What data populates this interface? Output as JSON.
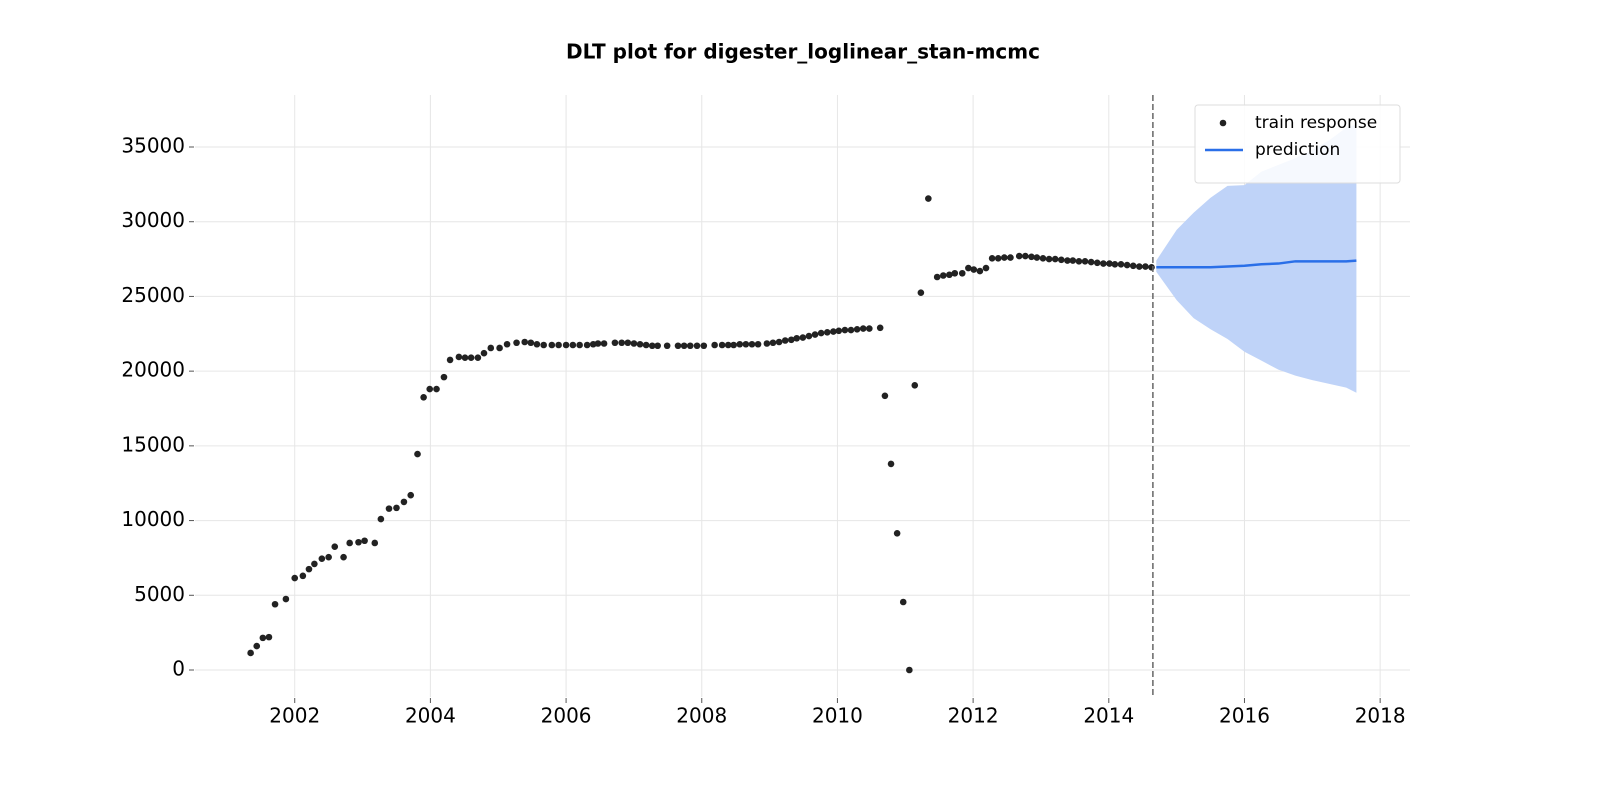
{
  "chart_data": {
    "type": "scatter",
    "title": "DLT plot for digester_loglinear_stan-mcmc",
    "xlim": [
      2000.53,
      2018.44
    ],
    "ylim": [
      -1807,
      38480
    ],
    "xticks": [
      2002,
      2004,
      2006,
      2008,
      2010,
      2012,
      2014,
      2016,
      2018
    ],
    "yticks": [
      0,
      5000,
      10000,
      15000,
      20000,
      25000,
      30000,
      35000
    ],
    "grid": true,
    "legend": "upper right",
    "cutoff": 2014.65,
    "series": [
      {
        "name": "train response",
        "type": "scatter",
        "color": "#222222",
        "x": [
          2001.35,
          2001.44,
          2001.53,
          2001.62,
          2001.71,
          2001.87,
          2002.0,
          2002.12,
          2002.21,
          2002.29,
          2002.4,
          2002.5,
          2002.59,
          2002.72,
          2002.81,
          2002.94,
          2003.03,
          2003.18,
          2003.27,
          2003.39,
          2003.5,
          2003.61,
          2003.71,
          2003.81,
          2003.9,
          2003.99,
          2004.09,
          2004.2,
          2004.29,
          2004.42,
          2004.51,
          2004.6,
          2004.7,
          2004.79,
          2004.89,
          2005.02,
          2005.13,
          2005.27,
          2005.39,
          2005.48,
          2005.57,
          2005.67,
          2005.79,
          2005.89,
          2006.0,
          2006.1,
          2006.2,
          2006.31,
          2006.4,
          2006.47,
          2006.56,
          2006.72,
          2006.82,
          2006.91,
          2007.0,
          2007.09,
          2007.18,
          2007.27,
          2007.35,
          2007.49,
          2007.65,
          2007.74,
          2007.83,
          2007.93,
          2008.03,
          2008.19,
          2008.3,
          2008.39,
          2008.47,
          2008.56,
          2008.65,
          2008.74,
          2008.83,
          2008.96,
          2009.05,
          2009.14,
          2009.23,
          2009.32,
          2009.4,
          2009.49,
          2009.58,
          2009.67,
          2009.76,
          2009.85,
          2009.94,
          2010.02,
          2010.11,
          2010.2,
          2010.29,
          2010.38,
          2010.47,
          2010.63,
          2010.7,
          2010.79,
          2010.88,
          2010.97,
          2011.06,
          2011.14,
          2011.23,
          2011.34,
          2011.47,
          2011.56,
          2011.65,
          2011.73,
          2011.84,
          2011.93,
          2012.01,
          2012.1,
          2012.19,
          2012.28,
          2012.37,
          2012.46,
          2012.55,
          2012.68,
          2012.77,
          2012.86,
          2012.94,
          2013.03,
          2013.12,
          2013.21,
          2013.3,
          2013.39,
          2013.47,
          2013.56,
          2013.65,
          2013.74,
          2013.83,
          2013.92,
          2014.01,
          2014.09,
          2014.18,
          2014.27,
          2014.36,
          2014.45,
          2014.54,
          2014.63
        ],
        "values": [
          1140,
          1600,
          2150,
          2200,
          4400,
          4750,
          6150,
          6300,
          6750,
          7100,
          7450,
          7550,
          8250,
          7550,
          8500,
          8550,
          8650,
          8500,
          10100,
          10800,
          10850,
          11250,
          11700,
          14450,
          18250,
          18800,
          18800,
          19600,
          20750,
          20950,
          20900,
          20900,
          20900,
          21200,
          21550,
          21550,
          21800,
          21900,
          21950,
          21900,
          21800,
          21750,
          21750,
          21750,
          21750,
          21750,
          21750,
          21750,
          21800,
          21850,
          21850,
          21900,
          21900,
          21900,
          21850,
          21800,
          21750,
          21700,
          21700,
          21700,
          21700,
          21700,
          21700,
          21700,
          21700,
          21750,
          21750,
          21750,
          21750,
          21800,
          21800,
          21800,
          21800,
          21850,
          21900,
          21950,
          22050,
          22100,
          22200,
          22250,
          22350,
          22450,
          22550,
          22600,
          22650,
          22700,
          22750,
          22750,
          22800,
          22850,
          22850,
          22900,
          18350,
          13790,
          9150,
          4550,
          0,
          19050,
          25250,
          31550,
          26300,
          26400,
          26450,
          26550,
          26550,
          26900,
          26800,
          26700,
          26900,
          27550,
          27550,
          27600,
          27600,
          27700,
          27700,
          27650,
          27600,
          27550,
          27500,
          27500,
          27450,
          27400,
          27400,
          27350,
          27350,
          27300,
          27250,
          27200,
          27200,
          27150,
          27150,
          27100,
          27050,
          27000,
          27000,
          26950
        ]
      },
      {
        "name": "prediction",
        "type": "line",
        "color": "#2a6fe8",
        "band_color": "#bfd3f8",
        "x": [
          2014.7,
          2015.0,
          2015.25,
          2015.5,
          2015.75,
          2016.0,
          2016.25,
          2016.5,
          2016.75,
          2017.0,
          2017.25,
          2017.5,
          2017.65
        ],
        "values": [
          26950,
          26950,
          26950,
          26950,
          27000,
          27050,
          27150,
          27200,
          27350,
          27350,
          27350,
          27350,
          27400
        ],
        "upper": [
          27400,
          29450,
          30600,
          31600,
          32400,
          32450,
          33350,
          33800,
          34250,
          34800,
          35450,
          36300,
          36500
        ],
        "lower": [
          26650,
          24750,
          23550,
          22800,
          22150,
          21300,
          20700,
          20100,
          19700,
          19400,
          19150,
          18900,
          18550
        ]
      }
    ]
  }
}
